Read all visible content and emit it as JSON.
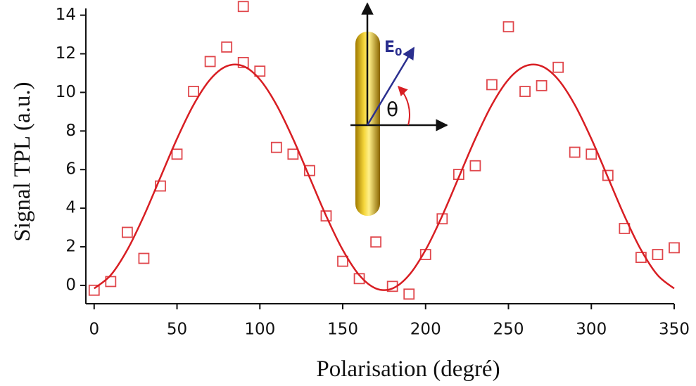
{
  "chart_data": {
    "type": "scatter",
    "x_label": "Polarisation (degré)",
    "y_label": "Signal TPL (a.u.)",
    "xlim": [
      -5,
      350
    ],
    "ylim": [
      -0.95,
      14.35
    ],
    "xticks": [
      0,
      50,
      100,
      150,
      200,
      250,
      300,
      350
    ],
    "yticks": [
      0,
      2,
      4,
      6,
      8,
      10,
      12,
      14
    ],
    "grid": false,
    "series": [
      {
        "mode": "markers",
        "color": "#e0474c",
        "x": [
          0,
          10,
          20,
          30,
          40,
          50,
          60,
          70,
          80,
          90,
          90,
          100,
          110,
          120,
          130,
          140,
          150,
          160,
          170,
          180,
          190,
          200,
          210,
          220,
          230,
          240,
          250,
          260,
          270,
          280,
          290,
          300,
          310,
          320,
          330,
          340,
          350
        ],
        "values": [
          -0.25,
          0.2,
          2.75,
          1.4,
          5.15,
          6.8,
          10.05,
          11.6,
          12.35,
          14.45,
          11.55,
          11.1,
          7.15,
          6.8,
          5.95,
          3.6,
          1.25,
          0.35,
          2.25,
          -0.05,
          -0.45,
          1.6,
          3.45,
          5.75,
          6.2,
          10.4,
          13.4,
          10.05,
          10.35,
          11.3,
          6.9,
          6.8,
          5.7,
          2.95,
          1.45,
          1.6,
          1.95
        ]
      },
      {
        "mode": "line",
        "color": "#d81e23",
        "x": [
          0,
          10,
          20,
          30,
          40,
          50,
          60,
          70,
          80,
          90,
          100,
          110,
          120,
          130,
          140,
          150,
          160,
          170,
          180,
          190,
          200,
          210,
          220,
          230,
          240,
          250,
          260,
          270,
          280,
          290,
          300,
          310,
          320,
          330,
          340,
          350
        ],
        "values": [
          -0.16,
          0.53,
          1.84,
          3.6,
          5.6,
          7.6,
          9.36,
          10.67,
          11.36,
          11.36,
          10.67,
          9.36,
          7.6,
          5.6,
          3.6,
          1.84,
          0.53,
          -0.16,
          -0.16,
          0.53,
          1.84,
          3.6,
          5.6,
          7.6,
          9.36,
          10.67,
          11.36,
          11.36,
          10.67,
          9.36,
          7.6,
          5.6,
          3.6,
          1.84,
          0.53,
          -0.16
        ]
      }
    ],
    "inset": {
      "field_label": "E",
      "field_subscript": "0",
      "angle_label": "θ"
    }
  }
}
